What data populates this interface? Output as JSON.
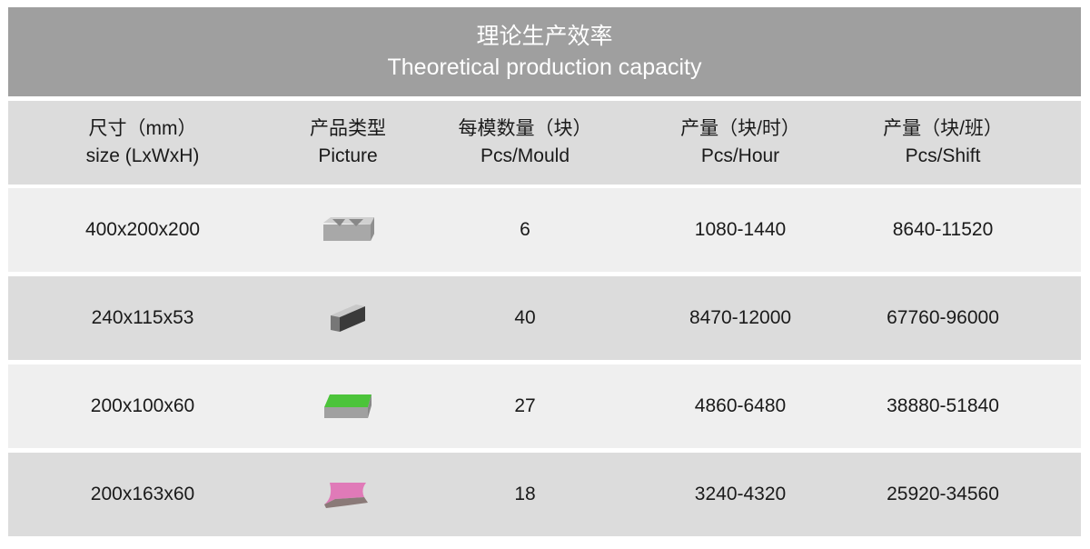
{
  "title": {
    "zh": "理论生产效率",
    "en": "Theoretical production capacity"
  },
  "headers": [
    {
      "zh": "尺寸（mm）",
      "en": "size (LxWxH)"
    },
    {
      "zh": "产品类型",
      "en": "Picture"
    },
    {
      "zh": "每模数量（块）",
      "en": "Pcs/Mould"
    },
    {
      "zh": "产量（块/时）",
      "en": "Pcs/Hour"
    },
    {
      "zh": "产量（块/班）",
      "en": "Pcs/Shift"
    }
  ],
  "rows": [
    {
      "size": "400x200x200",
      "picture": "hollow-block-icon",
      "mould": "6",
      "hour": "1080-1440",
      "shift": "8640-11520"
    },
    {
      "size": "240x115x53",
      "picture": "solid-brick-icon",
      "mould": "40",
      "hour": "8470-12000",
      "shift": "67760-96000"
    },
    {
      "size": "200x100x60",
      "picture": "green-paver-icon",
      "mould": "27",
      "hour": "4860-6480",
      "shift": "38880-51840"
    },
    {
      "size": "200x163x60",
      "picture": "pink-interlock-paver-icon",
      "mould": "18",
      "hour": "3240-4320",
      "shift": "25920-34560"
    }
  ],
  "colors": {
    "title_bg": "#9f9f9f",
    "header_bg": "#dcdcdc",
    "row_light": "#efefef",
    "row_dark": "#dcdcdc",
    "green": "#4cc43a",
    "pink": "#e07ab8"
  }
}
